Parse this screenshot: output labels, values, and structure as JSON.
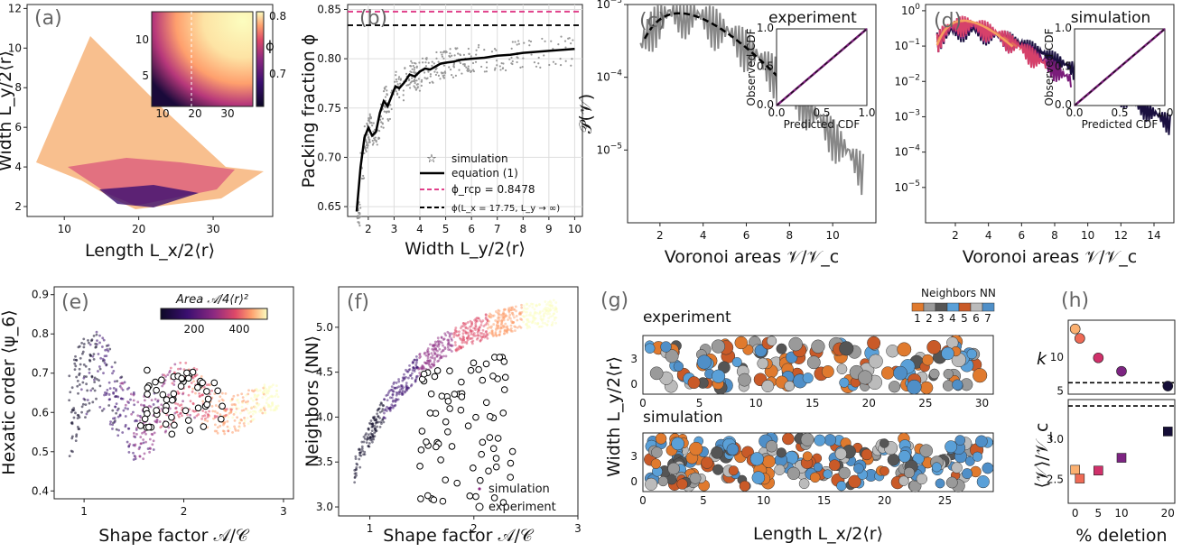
{
  "panels": {
    "a": {
      "label": "(a)"
    },
    "b": {
      "label": "(b)"
    },
    "c": {
      "label": "(c)",
      "title": "experiment"
    },
    "d": {
      "label": "(d)",
      "title": "simulation"
    },
    "e": {
      "label": "(e)"
    },
    "f": {
      "label": "(f)"
    },
    "g": {
      "label": "(g)",
      "top": "experiment",
      "bottom": "simulation",
      "cbar_title": "Neighbors  NN"
    },
    "h": {
      "label": "(h)"
    }
  },
  "colors": {
    "magma": [
      "#0c0826",
      "#3b0f70",
      "#8c2981",
      "#de4968",
      "#fe9f6d",
      "#fcfdbf"
    ],
    "nn": [
      "#e07a2e",
      "#9a9a9a",
      "#555555",
      "#5aa0d8",
      "#c95a28",
      "#bbbbbb",
      "#4f8fc8"
    ],
    "pink_dash": "#e0408a"
  },
  "chart_data": [
    {
      "panel": "a",
      "type": "scatter",
      "xlabel": "Length L_x/2⟨r⟩",
      "ylabel": "Width L_y/2⟨r⟩",
      "xlim": [
        5,
        38
      ],
      "ylim": [
        1.5,
        12.2
      ],
      "xticks": [
        "10",
        "20",
        "30"
      ],
      "yticks": [
        "2",
        "4",
        "6",
        "8",
        "10",
        "12"
      ],
      "inset": {
        "xticks": [
          "10",
          "20",
          "30"
        ],
        "yticks": [
          "5",
          "10"
        ],
        "cbar_label": "ϕ",
        "cbar_ticks": [
          "0.7",
          "0.8"
        ]
      }
    },
    {
      "panel": "b",
      "type": "line",
      "xlabel": "Width L_y/2⟨r⟩",
      "ylabel": "Packing fraction ϕ",
      "xlim": [
        1.2,
        10.3
      ],
      "ylim": [
        0.64,
        0.855
      ],
      "xticks": [
        "2",
        "3",
        "4",
        "5",
        "6",
        "7",
        "8",
        "9",
        "10"
      ],
      "yticks": [
        "0.65",
        "0.70",
        "0.75",
        "0.80",
        "0.85"
      ],
      "legend": [
        "simulation",
        "equation (1)",
        "ϕ_rcp = 0.8478",
        "ϕ(L_x = 17.75, L_y → ∞)"
      ],
      "phi_rcp": 0.8478,
      "phi_inf": 0.834,
      "equation_curve": {
        "x": [
          1.55,
          1.7,
          1.85,
          2.0,
          2.15,
          2.3,
          2.45,
          2.6,
          2.75,
          2.9,
          3.05,
          3.2,
          3.4,
          3.6,
          3.8,
          4.0,
          4.2,
          4.4,
          4.6,
          4.8,
          5.0,
          5.3,
          5.6,
          6.0,
          6.5,
          7.0,
          7.5,
          8.0,
          9.0,
          10.0
        ],
        "y": [
          0.645,
          0.69,
          0.72,
          0.73,
          0.722,
          0.726,
          0.745,
          0.757,
          0.752,
          0.762,
          0.772,
          0.77,
          0.776,
          0.784,
          0.782,
          0.787,
          0.79,
          0.789,
          0.792,
          0.795,
          0.796,
          0.797,
          0.799,
          0.8,
          0.801,
          0.803,
          0.804,
          0.806,
          0.808,
          0.81
        ]
      }
    },
    {
      "panel": "c",
      "type": "line",
      "yscale": "log",
      "xlabel": "Voronoi areas 𝒱/𝒱_c",
      "ylabel": "𝒫(𝒱)",
      "xlim": [
        0.5,
        12
      ],
      "ylim": [
        1e-06,
        0.001
      ],
      "xticks": [
        "2",
        "4",
        "6",
        "8",
        "10"
      ],
      "yticks": [
        "10^-3",
        "10^-4",
        "10^-5"
      ],
      "inset": {
        "xlabel": "Predicted CDF",
        "ylabel": "Observed CDF",
        "ticks": [
          "0.0",
          "0.5",
          "1.0"
        ]
      }
    },
    {
      "panel": "d",
      "type": "line",
      "yscale": "log",
      "xlabel": "Voronoi areas 𝒱/𝒱_c",
      "ylabel": "",
      "xlim": [
        0.2,
        15.2
      ],
      "ylim": [
        1e-06,
        1.5
      ],
      "xticks": [
        "2",
        "4",
        "6",
        "8",
        "10",
        "12",
        "14"
      ],
      "yticks": [
        "10^0",
        "10^-1",
        "10^-2",
        "10^-3",
        "10^-4",
        "10^-5"
      ],
      "inset": {
        "xlabel": "Predicted CDF",
        "ylabel": "Observed CDF",
        "ticks": [
          "0.0",
          "0.5",
          "1.0"
        ]
      }
    },
    {
      "panel": "e",
      "type": "scatter",
      "xlabel": "Shape factor 𝒜/𝒞",
      "ylabel": "Hexatic order ⟨ψ_6⟩",
      "xlim": [
        0.7,
        3.1
      ],
      "ylim": [
        0.38,
        0.92
      ],
      "xticks": [
        "1",
        "2",
        "3"
      ],
      "yticks": [
        "0.4",
        "0.5",
        "0.6",
        "0.7",
        "0.8",
        "0.9"
      ],
      "cbar_label": "Area 𝒜/4⟨r⟩²",
      "cbar_ticks": [
        "200",
        "400"
      ]
    },
    {
      "panel": "f",
      "type": "scatter",
      "xlabel": "Shape factor 𝒜/𝒞",
      "ylabel": "Neighbors ⟨NN⟩",
      "xlim": [
        0.7,
        3.0
      ],
      "ylim": [
        2.9,
        5.45
      ],
      "xticks": [
        "1",
        "2",
        "3"
      ],
      "yticks": [
        "3.0",
        "3.5",
        "4.0",
        "4.5",
        "5.0"
      ],
      "legend": [
        "simulation",
        "experiment"
      ]
    },
    {
      "panel": "g",
      "type": "scatter",
      "xlabel": "Length L_x/2⟨r⟩",
      "ylabel": "Width L_y/2⟨r⟩",
      "top_xticks": [
        "0",
        "5",
        "10",
        "15",
        "20",
        "25",
        "30"
      ],
      "bottom_xticks": [
        "0",
        "5",
        "10",
        "15",
        "20",
        "25"
      ],
      "yticks": [
        "0",
        "3"
      ],
      "cbar_ticks": [
        "1",
        "2",
        "3",
        "4",
        "5",
        "6",
        "7"
      ]
    },
    {
      "panel": "h",
      "type": "scatter",
      "xlabel": "% deletion",
      "ylabel_top": "k",
      "ylabel_bottom": "⟨𝒱⟩/𝒱_c",
      "xlim": [
        -1.5,
        21.5
      ],
      "xticks": [
        "0",
        "5",
        "10",
        "20"
      ],
      "top": {
        "ylim": [
          4.5,
          15.5
        ],
        "yticks": [
          "5",
          "10"
        ],
        "dash": 6.2,
        "points": [
          {
            "x": 0,
            "y": 14.2
          },
          {
            "x": 1,
            "y": 12.8
          },
          {
            "x": 5,
            "y": 9.9
          },
          {
            "x": 10,
            "y": 7.9
          },
          {
            "x": 20,
            "y": 5.7
          }
        ]
      },
      "bottom": {
        "ylim": [
          2.2,
          3.5
        ],
        "yticks": [
          "2.5",
          "3.0"
        ],
        "dash": 3.42,
        "points": [
          {
            "x": 0,
            "y": 2.62
          },
          {
            "x": 1,
            "y": 2.51
          },
          {
            "x": 5,
            "y": 2.61
          },
          {
            "x": 10,
            "y": 2.77
          },
          {
            "x": 20,
            "y": 3.1
          }
        ]
      }
    }
  ]
}
